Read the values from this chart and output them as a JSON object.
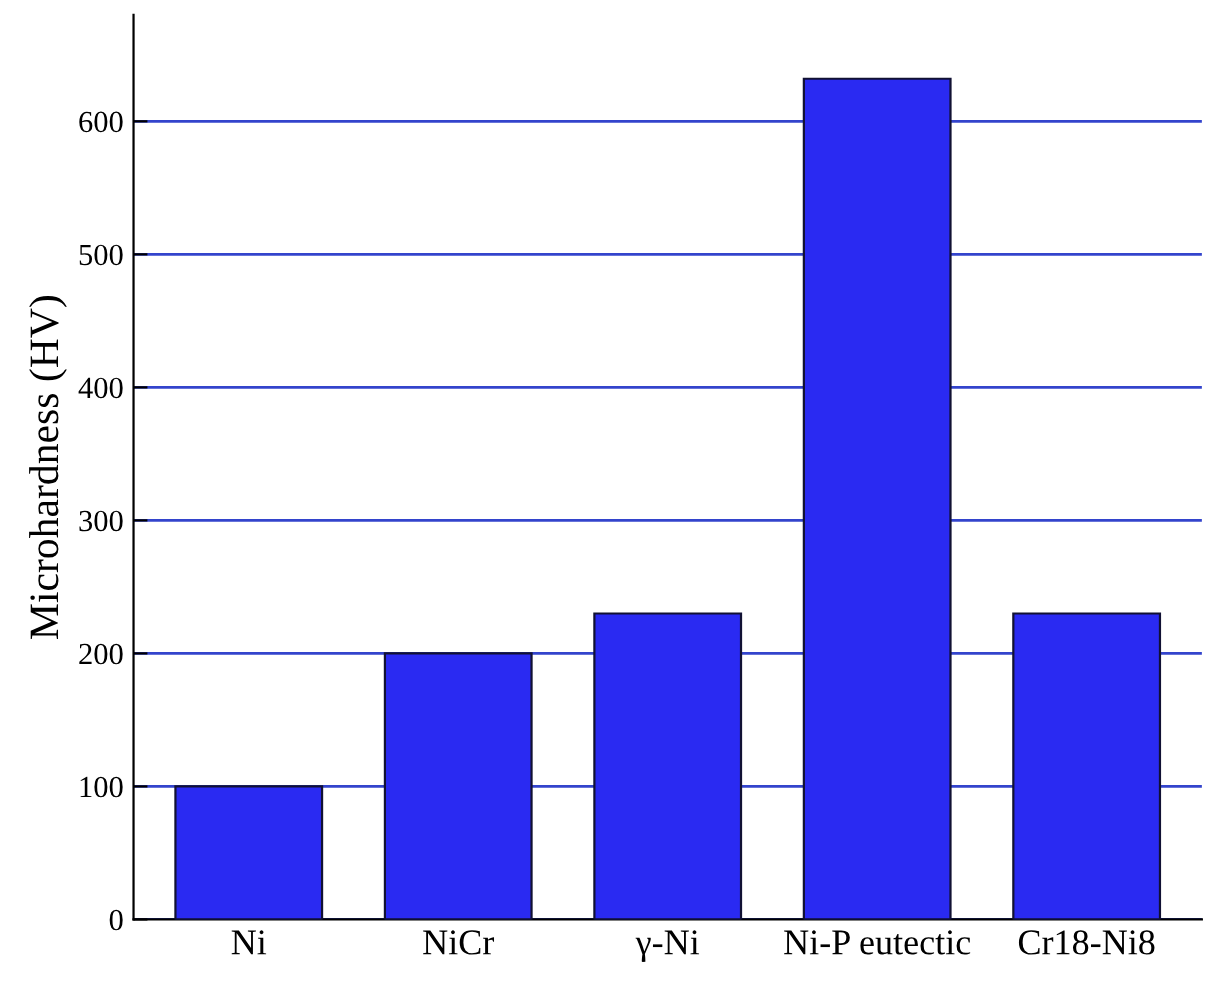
{
  "chart_data": {
    "type": "bar",
    "ylabel": "Microhardness (HV)",
    "categories": [
      "Ni",
      "NiCr",
      "γ-Ni",
      "Ni-P eutectic",
      "Cr18-Ni8"
    ],
    "values": [
      100,
      200,
      230,
      632,
      230
    ],
    "color": "#2a2af2",
    "ylim": [
      0,
      680
    ],
    "yticks": [
      0,
      100,
      200,
      300,
      400,
      500,
      600
    ],
    "grid": "y"
  }
}
